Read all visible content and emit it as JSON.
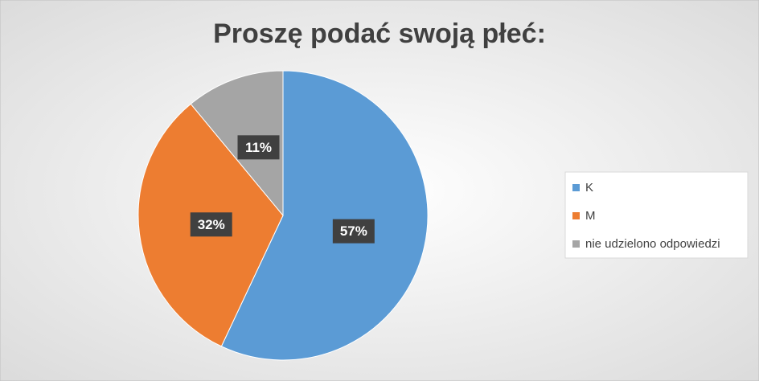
{
  "chart_data": {
    "type": "pie",
    "title": "Proszę podać swoją płeć:",
    "categories": [
      "K",
      "M",
      "nie udzielono odpowiedzi"
    ],
    "values": [
      57,
      32,
      11
    ],
    "value_labels": [
      "57%",
      "32%",
      "11%"
    ],
    "colors": [
      "#5b9bd5",
      "#ed7d31",
      "#a5a5a5"
    ],
    "legend": "right"
  }
}
